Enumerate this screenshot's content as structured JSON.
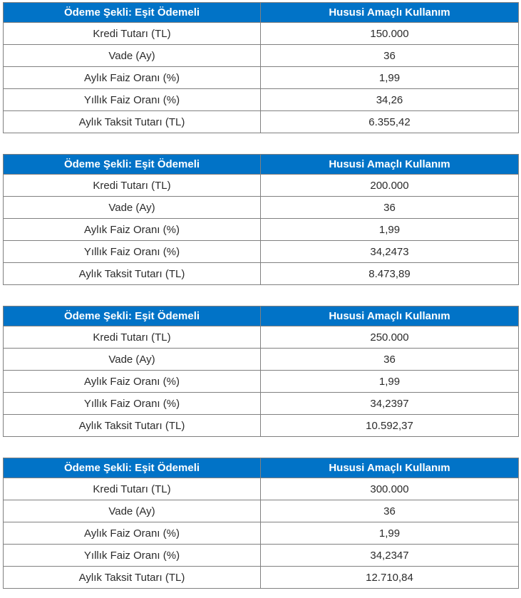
{
  "styles": {
    "header_bg": "#0173c7",
    "header_text_color": "#ffffff",
    "border_color": "#808080",
    "body_text_color": "#2b2b2b",
    "page_bg": "#ffffff"
  },
  "table_header": {
    "col1": "Ödeme Şekli: Eşit Ödemeli",
    "col2": "Hususi Amaçlı Kullanım"
  },
  "row_labels": [
    "Kredi Tutarı (TL)",
    "Vade (Ay)",
    "Aylık Faiz Oranı (%)",
    "Yıllık Faiz Oranı (%)",
    "Aylık Taksit Tutarı (TL)"
  ],
  "tables": [
    {
      "values": [
        "150.000",
        "36",
        "1,99",
        "34,26",
        "6.355,42"
      ]
    },
    {
      "values": [
        "200.000",
        "36",
        "1,99",
        "34,2473",
        "8.473,89"
      ]
    },
    {
      "values": [
        "250.000",
        "36",
        "1,99",
        "34,2397",
        "10.592,37"
      ]
    },
    {
      "values": [
        "300.000",
        "36",
        "1,99",
        "34,2347",
        "12.710,84"
      ]
    }
  ],
  "chart_data": [
    {
      "type": "table",
      "title": "Ödeme Şekli: Eşit Ödemeli — Hususi Amaçlı Kullanım",
      "categories": [
        "Kredi Tutarı (TL)",
        "Vade (Ay)",
        "Aylık Faiz Oranı (%)",
        "Yıllık Faiz Oranı (%)",
        "Aylık Taksit Tutarı (TL)"
      ],
      "values": [
        150000,
        36,
        1.99,
        34.26,
        6355.42
      ]
    },
    {
      "type": "table",
      "title": "Ödeme Şekli: Eşit Ödemeli — Hususi Amaçlı Kullanım",
      "categories": [
        "Kredi Tutarı (TL)",
        "Vade (Ay)",
        "Aylık Faiz Oranı (%)",
        "Yıllık Faiz Oranı (%)",
        "Aylık Taksit Tutarı (TL)"
      ],
      "values": [
        200000,
        36,
        1.99,
        34.2473,
        8473.89
      ]
    },
    {
      "type": "table",
      "title": "Ödeme Şekli: Eşit Ödemeli — Hususi Amaçlı Kullanım",
      "categories": [
        "Kredi Tutarı (TL)",
        "Vade (Ay)",
        "Aylık Faiz Oranı (%)",
        "Yıllık Faiz Oranı (%)",
        "Aylık Taksit Tutarı (TL)"
      ],
      "values": [
        250000,
        36,
        1.99,
        34.2397,
        10592.37
      ]
    },
    {
      "type": "table",
      "title": "Ödeme Şekli: Eşit Ödemeli — Hususi Amaçlı Kullanım",
      "categories": [
        "Kredi Tutarı (TL)",
        "Vade (Ay)",
        "Aylık Faiz Oranı (%)",
        "Yıllık Faiz Oranı (%)",
        "Aylık Taksit Tutarı (TL)"
      ],
      "values": [
        300000,
        36,
        1.99,
        34.2347,
        12710.84
      ]
    }
  ]
}
